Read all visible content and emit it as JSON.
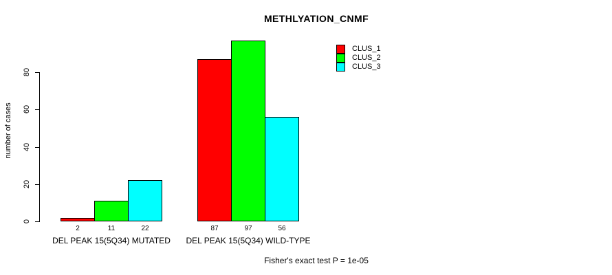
{
  "chart_data": {
    "type": "bar",
    "title": "METHLYATION_CNMF",
    "ylabel": "number of cases",
    "xlabel": "",
    "yticks": [
      0,
      20,
      40,
      60,
      80
    ],
    "ylim": [
      0,
      100
    ],
    "grid": false,
    "legend_position": "top-right",
    "bar_value_labels_shown": true,
    "categories": [
      "DEL PEAK 15(5Q34) MUTATED",
      "DEL PEAK 15(5Q34) WILD-TYPE"
    ],
    "series": [
      {
        "name": "CLUS_1",
        "color": "#ff0000",
        "values": [
          2,
          87
        ]
      },
      {
        "name": "CLUS_2",
        "color": "#00ff00",
        "values": [
          11,
          97
        ]
      },
      {
        "name": "CLUS_3",
        "color": "#00ffff",
        "values": [
          22,
          56
        ]
      }
    ],
    "footnote": "Fisher's exact test P = 1e-05"
  }
}
